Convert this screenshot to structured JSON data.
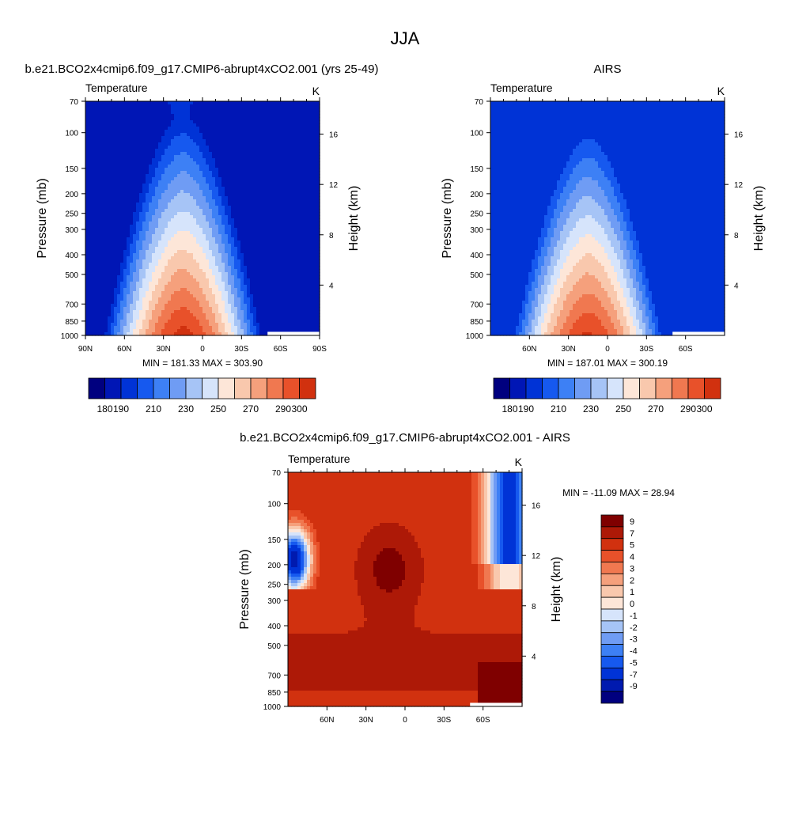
{
  "page": {
    "title": "JJA"
  },
  "palettes": {
    "abs": [
      "#00007f",
      "#0016b5",
      "#0033d6",
      "#1659ef",
      "#3d80f5",
      "#6f9cf4",
      "#a6c4f6",
      "#d6e4fb",
      "#fde6d8",
      "#f9c8ad",
      "#f5a07c",
      "#f07850",
      "#e8512a",
      "#d1310f",
      "#ad1907",
      "#7f0000"
    ],
    "diff": [
      "#00007f",
      "#001aaf",
      "#0033d6",
      "#1659ef",
      "#3d80f5",
      "#6f9cf4",
      "#a6c4f6",
      "#d6e4fb",
      "#fde6d8",
      "#f9c8ad",
      "#f5a07c",
      "#f07850",
      "#e8512a",
      "#d1310f",
      "#ad1907",
      "#7f0000"
    ]
  },
  "chart_data": [
    {
      "type": "heatmap",
      "title": "b.e21.BCO2x4cmip6.f09_g17.CMIP6-abrupt4xCO2.001 (yrs 25-49)",
      "left_string": "Temperature",
      "right_string": "K",
      "ylabel": "Pressure (mb)",
      "ylabel_right": "Height (km)",
      "xlim": [
        90,
        -90
      ],
      "x_tick_values": [
        90,
        60,
        30,
        0,
        -30,
        -60,
        -90
      ],
      "x_tick_labels": [
        "90N",
        "60N",
        "30N",
        "0",
        "30S",
        "60S",
        "90S"
      ],
      "y_scale": "log",
      "ylim": [
        1000,
        70
      ],
      "y_ticks": [
        70,
        100,
        150,
        200,
        250,
        300,
        400,
        500,
        700,
        850,
        1000
      ],
      "y_tick_labels": [
        "70",
        "100",
        "150",
        "200",
        "250",
        "300",
        "400",
        "500",
        "700",
        "850",
        "1000"
      ],
      "height_ticks_km": [
        4,
        8,
        12,
        16
      ],
      "height_tick_labels": [
        "4",
        "8",
        "12",
        "16"
      ],
      "stats_text": "MIN = 181.33   MAX = 303.90",
      "min": 181.33,
      "max": 303.9,
      "field_model": "model",
      "levels": [
        180,
        190,
        200,
        210,
        220,
        230,
        240,
        250,
        260,
        270,
        280,
        290,
        300
      ],
      "palette": "abs",
      "colorbar": {
        "orientation": "horizontal",
        "label_values": [
          180,
          190,
          210,
          230,
          250,
          270,
          290,
          300
        ],
        "labels": [
          "180",
          "190",
          "210",
          "230",
          "250",
          "270",
          "290",
          "300"
        ]
      }
    },
    {
      "type": "heatmap",
      "title": "AIRS",
      "left_string": "Temperature",
      "right_string": "K",
      "ylabel": "Pressure (mb)",
      "ylabel_right": "Height (km)",
      "xlim": [
        90,
        -90
      ],
      "x_tick_values": [
        60,
        30,
        0,
        -30,
        -60
      ],
      "x_tick_labels": [
        "60N",
        "30N",
        "0",
        "30S",
        "60S"
      ],
      "y_scale": "log",
      "ylim": [
        1000,
        70
      ],
      "y_ticks": [
        70,
        100,
        150,
        200,
        250,
        300,
        400,
        500,
        700,
        850,
        1000
      ],
      "y_tick_labels": [
        "70",
        "100",
        "150",
        "200",
        "250",
        "300",
        "400",
        "500",
        "700",
        "850",
        "1000"
      ],
      "height_ticks_km": [
        4,
        8,
        12,
        16
      ],
      "height_tick_labels": [
        "4",
        "8",
        "12",
        "16"
      ],
      "stats_text": "MIN = 187.01   MAX = 300.19",
      "min": 187.01,
      "max": 300.19,
      "field_model": "airs",
      "levels": [
        180,
        190,
        200,
        210,
        220,
        230,
        240,
        250,
        260,
        270,
        280,
        290,
        300
      ],
      "palette": "abs",
      "colorbar": {
        "orientation": "horizontal",
        "label_values": [
          180,
          190,
          210,
          230,
          250,
          270,
          290,
          300
        ],
        "labels": [
          "180",
          "190",
          "210",
          "230",
          "250",
          "270",
          "290",
          "300"
        ]
      }
    },
    {
      "type": "heatmap",
      "title": "b.e21.BCO2x4cmip6.f09_g17.CMIP6-abrupt4xCO2.001 - AIRS",
      "left_string": "Temperature",
      "right_string": "K",
      "ylabel": "Pressure (mb)",
      "ylabel_right": "Height (km)",
      "xlim": [
        90,
        -90
      ],
      "x_tick_values": [
        60,
        30,
        0,
        -30,
        -60
      ],
      "x_tick_labels": [
        "60N",
        "30N",
        "0",
        "30S",
        "60S"
      ],
      "y_scale": "log",
      "ylim": [
        1000,
        70
      ],
      "y_ticks": [
        70,
        100,
        150,
        200,
        250,
        300,
        400,
        500,
        700,
        850,
        1000
      ],
      "y_tick_labels": [
        "70",
        "100",
        "150",
        "200",
        "250",
        "300",
        "400",
        "500",
        "700",
        "850",
        "1000"
      ],
      "height_ticks_km": [
        4,
        8,
        12,
        16
      ],
      "height_tick_labels": [
        "4",
        "8",
        "12",
        "16"
      ],
      "stats_text": "MIN = -11.09   MAX =  28.94",
      "min": -11.09,
      "max": 28.94,
      "field_model": "diff",
      "levels": [
        -9,
        -7,
        -5,
        -4,
        -3,
        -2,
        -1,
        0,
        1,
        2,
        3,
        4,
        5,
        7,
        9
      ],
      "palette": "diff",
      "colorbar": {
        "orientation": "vertical",
        "label_values": [
          9,
          7,
          5,
          4,
          3,
          2,
          1,
          0,
          -1,
          -2,
          -3,
          -4,
          -5,
          -7,
          -9
        ],
        "labels": [
          "9",
          "7",
          "5",
          "4",
          "3",
          "2",
          "1",
          "0",
          "-1",
          "-2",
          "-3",
          "-4",
          "-5",
          "-7",
          "-9"
        ]
      }
    }
  ]
}
